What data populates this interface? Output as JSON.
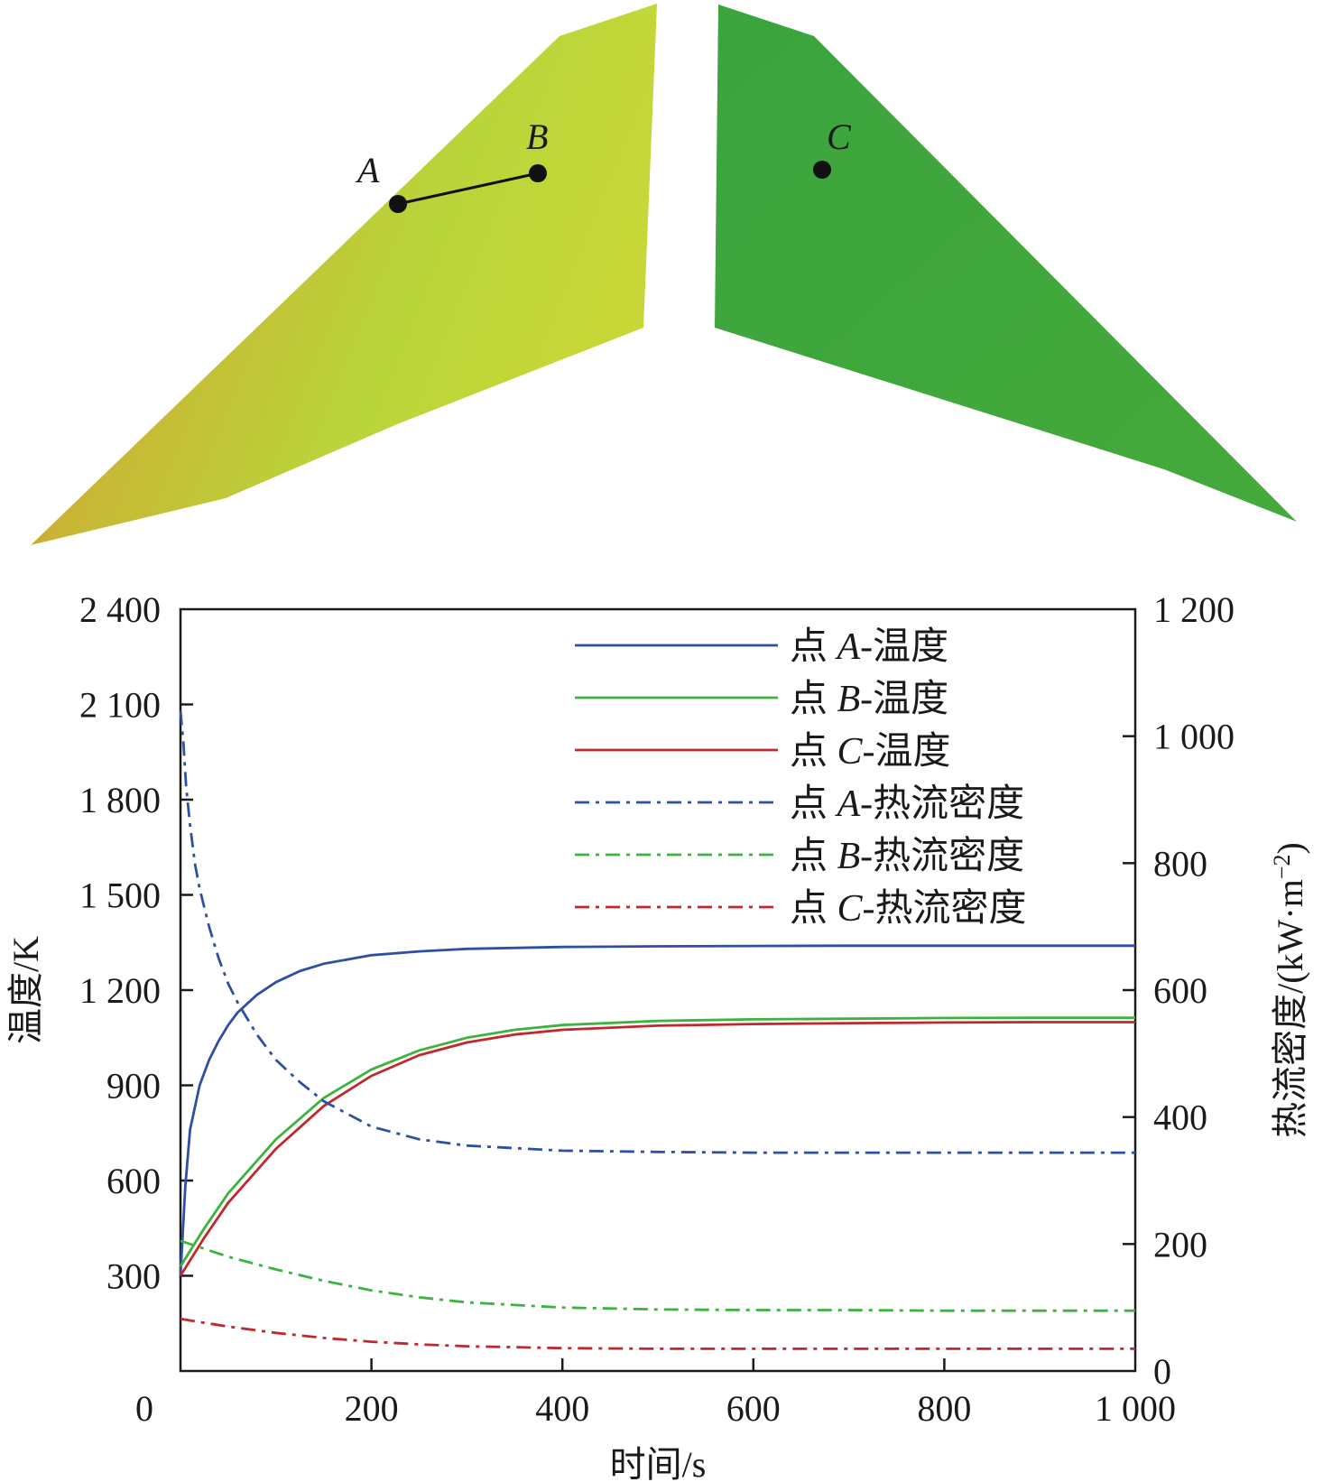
{
  "diagram": {
    "point_labels": {
      "A": "A",
      "B": "B",
      "C": "C"
    },
    "colors": {
      "hot_edge": "#e0602a",
      "warm": "#c8d42e",
      "cool": "#3aa33c"
    }
  },
  "chart_data": {
    "type": "line",
    "xlabel": "时间/s",
    "ylabel_left": "温度/K",
    "ylabel_right_main": "热流密度/(kW·m",
    "ylabel_right_sup": "−2",
    "ylabel_right_close": ")",
    "xlim": [
      0,
      1000
    ],
    "ylim_left": [
      0,
      2400
    ],
    "ylim_right": [
      0,
      1200
    ],
    "x_ticks": [
      0,
      200,
      400,
      600,
      800,
      1000
    ],
    "x_tick_labels": [
      "0",
      "200",
      "400",
      "600",
      "800",
      "1 000"
    ],
    "y_left_ticks": [
      300,
      600,
      900,
      1200,
      1500,
      1800,
      2100,
      2400
    ],
    "y_left_tick_labels": [
      "300",
      "600",
      "900",
      "1 200",
      "1 500",
      "1 800",
      "2 100",
      "2 400"
    ],
    "y_right_ticks": [
      0,
      200,
      400,
      600,
      800,
      1000,
      1200
    ],
    "y_right_tick_labels": [
      "0",
      "200",
      "400",
      "600",
      "800",
      "1 000",
      "1 200"
    ],
    "legend_location": "top-right",
    "series": [
      {
        "name_prefix": "点 ",
        "name_point": "A",
        "name_suffix": "-温度",
        "axis": "left",
        "style": "solid",
        "color": "#2e4fa3",
        "x": [
          0,
          5,
          10,
          20,
          30,
          40,
          50,
          60,
          80,
          100,
          125,
          150,
          200,
          250,
          300,
          400,
          500,
          600,
          700,
          800,
          900,
          1000
        ],
        "y": [
          300,
          580,
          760,
          900,
          980,
          1040,
          1090,
          1130,
          1185,
          1225,
          1260,
          1283,
          1310,
          1322,
          1330,
          1336,
          1338,
          1339,
          1340,
          1340,
          1340,
          1340
        ]
      },
      {
        "name_prefix": "点 ",
        "name_point": "B",
        "name_suffix": "-温度",
        "axis": "left",
        "style": "solid",
        "color": "#3cb33c",
        "x": [
          0,
          25,
          50,
          100,
          150,
          200,
          250,
          300,
          350,
          400,
          500,
          600,
          700,
          800,
          900,
          1000
        ],
        "y": [
          330,
          450,
          560,
          730,
          860,
          950,
          1010,
          1050,
          1075,
          1090,
          1103,
          1108,
          1110,
          1112,
          1113,
          1113
        ]
      },
      {
        "name_prefix": "点 ",
        "name_point": "C",
        "name_suffix": "-温度",
        "axis": "left",
        "style": "solid",
        "color": "#c0282d",
        "x": [
          0,
          25,
          50,
          100,
          150,
          200,
          250,
          300,
          350,
          400,
          500,
          600,
          700,
          800,
          900,
          1000
        ],
        "y": [
          300,
          420,
          530,
          700,
          835,
          930,
          995,
          1035,
          1060,
          1075,
          1088,
          1093,
          1096,
          1098,
          1099,
          1099
        ]
      },
      {
        "name_prefix": "点 ",
        "name_point": "A",
        "name_suffix": "-热流密度",
        "axis": "right",
        "style": "dashdot",
        "color": "#2e4fa3",
        "x": [
          0,
          3,
          6,
          10,
          15,
          20,
          30,
          40,
          50,
          60,
          80,
          100,
          125,
          150,
          200,
          250,
          300,
          400,
          500,
          600,
          700,
          800,
          900,
          1000
        ],
        "y": [
          1040,
          990,
          920,
          860,
          800,
          760,
          700,
          650,
          610,
          580,
          530,
          490,
          455,
          425,
          385,
          365,
          355,
          347,
          345,
          344,
          344,
          344,
          344,
          344
        ]
      },
      {
        "name_prefix": "点 ",
        "name_point": "B",
        "name_suffix": "-热流密度",
        "axis": "right",
        "style": "dashdot",
        "color": "#3cb33c",
        "x": [
          0,
          50,
          100,
          150,
          200,
          250,
          300,
          400,
          500,
          600,
          700,
          800,
          900,
          1000
        ],
        "y": [
          205,
          180,
          160,
          142,
          127,
          116,
          108,
          100,
          97,
          96,
          96,
          95,
          95,
          95
        ]
      },
      {
        "name_prefix": "点 ",
        "name_point": "C",
        "name_suffix": "-热流密度",
        "axis": "right",
        "style": "dashdot",
        "color": "#c0282d",
        "x": [
          0,
          50,
          100,
          150,
          200,
          250,
          300,
          400,
          500,
          600,
          700,
          800,
          900,
          1000
        ],
        "y": [
          82,
          70,
          60,
          52,
          46,
          42,
          39,
          36,
          35,
          35,
          35,
          35,
          35,
          35
        ]
      }
    ]
  }
}
